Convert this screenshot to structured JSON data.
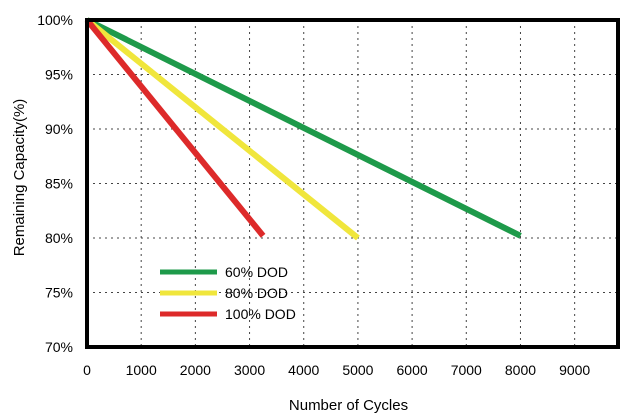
{
  "chart_data": {
    "type": "line",
    "title": "",
    "xlabel": "Number of Cycles",
    "ylabel": "Remaining Capacity(%)",
    "xlim": [
      0,
      9800
    ],
    "ylim": [
      70,
      100
    ],
    "x_ticks": [
      0,
      1000,
      2000,
      3000,
      4000,
      5000,
      6000,
      7000,
      8000,
      9000
    ],
    "x_tick_labels": [
      "0",
      "1000",
      "2000",
      "3000",
      "4000",
      "5000",
      "6000",
      "7000",
      "8000",
      "9000"
    ],
    "y_ticks": [
      100,
      95,
      90,
      85,
      80,
      75,
      70
    ],
    "y_tick_labels": [
      "100%",
      "95%",
      "90%",
      "85%",
      "80%",
      "75%",
      "70%"
    ],
    "grid": true,
    "grid_style": "dotted",
    "legend_position": "lower-left",
    "series": [
      {
        "name": "60% DOD",
        "color": "#1e9a4a",
        "points": [
          [
            0,
            100
          ],
          [
            8000,
            80.2
          ]
        ]
      },
      {
        "name": "80% DOD",
        "color": "#f0e63c",
        "points": [
          [
            0,
            100
          ],
          [
            5000,
            80
          ]
        ]
      },
      {
        "name": "100% DOD",
        "color": "#dd2a2a",
        "points": [
          [
            0,
            100
          ],
          [
            3250,
            80.2
          ]
        ]
      }
    ]
  }
}
